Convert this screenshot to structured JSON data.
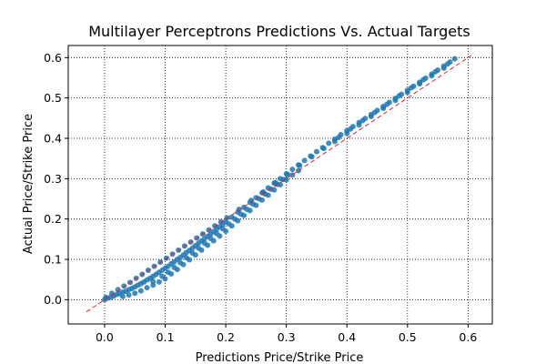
{
  "chart_data": {
    "type": "scatter",
    "title": "Multilayer Perceptrons Predictions Vs. Actual Targets",
    "xlabel": "Predictions Price/Strike Price",
    "ylabel": "Actual Price/Strike Price",
    "xlim": [
      -0.06,
      0.64
    ],
    "ylim": [
      -0.06,
      0.63
    ],
    "xticks": [
      0.0,
      0.1,
      0.2,
      0.3,
      0.4,
      0.5,
      0.6
    ],
    "yticks": [
      0.0,
      0.1,
      0.2,
      0.3,
      0.4,
      0.5,
      0.6
    ],
    "xtick_labels": [
      "0.0",
      "0.1",
      "0.2",
      "0.3",
      "0.4",
      "0.5",
      "0.6"
    ],
    "ytick_labels": [
      "0.0",
      "0.1",
      "0.2",
      "0.3",
      "0.4",
      "0.5",
      "0.6"
    ],
    "grid": true,
    "grid_style": "dotted",
    "point_color": "#1f77b4",
    "reference_line": {
      "x": [
        -0.03,
        0.605
      ],
      "y": [
        -0.03,
        0.605
      ],
      "color": "#d62728",
      "style": "dashed"
    },
    "series": [
      {
        "points": [
          [
            0.0,
            0.0
          ],
          [
            0.005,
            0.004
          ],
          [
            0.01,
            0.006
          ],
          [
            0.015,
            0.009
          ],
          [
            0.02,
            0.013
          ],
          [
            0.025,
            0.015
          ],
          [
            0.03,
            0.019
          ],
          [
            0.035,
            0.021
          ],
          [
            0.04,
            0.025
          ],
          [
            0.045,
            0.028
          ],
          [
            0.05,
            0.032
          ],
          [
            0.055,
            0.036
          ],
          [
            0.06,
            0.04
          ],
          [
            0.065,
            0.044
          ],
          [
            0.07,
            0.049
          ],
          [
            0.075,
            0.053
          ],
          [
            0.08,
            0.058
          ],
          [
            0.085,
            0.063
          ],
          [
            0.09,
            0.068
          ],
          [
            0.095,
            0.073
          ],
          [
            0.1,
            0.078
          ],
          [
            0.105,
            0.083
          ],
          [
            0.11,
            0.089
          ],
          [
            0.115,
            0.094
          ],
          [
            0.12,
            0.1
          ],
          [
            0.125,
            0.105
          ],
          [
            0.13,
            0.111
          ],
          [
            0.135,
            0.117
          ],
          [
            0.14,
            0.122
          ],
          [
            0.145,
            0.128
          ],
          [
            0.15,
            0.134
          ],
          [
            0.155,
            0.14
          ],
          [
            0.16,
            0.146
          ],
          [
            0.165,
            0.151
          ],
          [
            0.17,
            0.157
          ],
          [
            0.175,
            0.163
          ],
          [
            0.18,
            0.169
          ],
          [
            0.185,
            0.175
          ],
          [
            0.19,
            0.181
          ],
          [
            0.195,
            0.187
          ],
          [
            0.2,
            0.193
          ],
          [
            0.21,
            0.205
          ],
          [
            0.22,
            0.217
          ],
          [
            0.23,
            0.229
          ],
          [
            0.24,
            0.241
          ],
          [
            0.25,
            0.253
          ],
          [
            0.26,
            0.265
          ],
          [
            0.27,
            0.277
          ],
          [
            0.28,
            0.289
          ],
          [
            0.29,
            0.3
          ],
          [
            0.3,
            0.312
          ],
          [
            0.31,
            0.323
          ],
          [
            0.32,
            0.334
          ],
          [
            0.33,
            0.345
          ],
          [
            0.34,
            0.356
          ],
          [
            0.35,
            0.367
          ],
          [
            0.36,
            0.377
          ],
          [
            0.37,
            0.388
          ],
          [
            0.38,
            0.398
          ],
          [
            0.39,
            0.409
          ],
          [
            0.4,
            0.419
          ],
          [
            0.41,
            0.429
          ],
          [
            0.42,
            0.439
          ],
          [
            0.43,
            0.449
          ],
          [
            0.44,
            0.459
          ],
          [
            0.45,
            0.469
          ],
          [
            0.46,
            0.479
          ],
          [
            0.47,
            0.489
          ],
          [
            0.48,
            0.499
          ],
          [
            0.49,
            0.509
          ],
          [
            0.5,
            0.519
          ],
          [
            0.51,
            0.529
          ],
          [
            0.52,
            0.539
          ],
          [
            0.53,
            0.549
          ],
          [
            0.54,
            0.559
          ],
          [
            0.55,
            0.569
          ],
          [
            0.56,
            0.579
          ],
          [
            0.57,
            0.589
          ],
          [
            0.578,
            0.597
          ],
          [
            0.002,
            0.006
          ],
          [
            0.012,
            0.016
          ],
          [
            0.022,
            0.025
          ],
          [
            0.032,
            0.034
          ],
          [
            0.042,
            0.043
          ],
          [
            0.052,
            0.053
          ],
          [
            0.062,
            0.063
          ],
          [
            0.072,
            0.073
          ],
          [
            0.082,
            0.083
          ],
          [
            0.092,
            0.093
          ],
          [
            0.102,
            0.103
          ],
          [
            0.112,
            0.113
          ],
          [
            0.122,
            0.123
          ],
          [
            0.132,
            0.133
          ],
          [
            0.142,
            0.143
          ],
          [
            0.152,
            0.153
          ],
          [
            0.162,
            0.163
          ],
          [
            0.172,
            0.173
          ],
          [
            0.182,
            0.183
          ],
          [
            0.192,
            0.193
          ],
          [
            0.202,
            0.203
          ],
          [
            0.222,
            0.224
          ],
          [
            0.242,
            0.246
          ],
          [
            0.262,
            0.267
          ],
          [
            0.282,
            0.29
          ],
          [
            0.302,
            0.311
          ],
          [
            0.322,
            0.333
          ],
          [
            0.342,
            0.354
          ],
          [
            0.362,
            0.375
          ],
          [
            0.03,
            0.008
          ],
          [
            0.04,
            0.012
          ],
          [
            0.05,
            0.016
          ],
          [
            0.06,
            0.022
          ],
          [
            0.07,
            0.03
          ],
          [
            0.08,
            0.036
          ],
          [
            0.09,
            0.044
          ],
          [
            0.1,
            0.052
          ],
          [
            0.11,
            0.064
          ],
          [
            0.12,
            0.075
          ],
          [
            0.13,
            0.087
          ],
          [
            0.14,
            0.099
          ],
          [
            0.15,
            0.111
          ],
          [
            0.16,
            0.123
          ],
          [
            0.17,
            0.135
          ],
          [
            0.18,
            0.146
          ],
          [
            0.19,
            0.158
          ],
          [
            0.2,
            0.17
          ],
          [
            0.21,
            0.183
          ],
          [
            0.22,
            0.196
          ],
          [
            0.23,
            0.209
          ],
          [
            0.24,
            0.221
          ],
          [
            0.25,
            0.234
          ],
          [
            0.26,
            0.247
          ],
          [
            0.27,
            0.259
          ],
          [
            0.28,
            0.272
          ],
          [
            0.29,
            0.285
          ],
          [
            0.3,
            0.297
          ],
          [
            0.31,
            0.309
          ],
          [
            0.32,
            0.32
          ],
          [
            0.08,
            0.045
          ],
          [
            0.095,
            0.058
          ],
          [
            0.105,
            0.068
          ],
          [
            0.115,
            0.08
          ],
          [
            0.125,
            0.092
          ],
          [
            0.135,
            0.104
          ],
          [
            0.145,
            0.116
          ],
          [
            0.155,
            0.128
          ],
          [
            0.165,
            0.14
          ],
          [
            0.175,
            0.152
          ],
          [
            0.185,
            0.164
          ],
          [
            0.195,
            0.176
          ],
          [
            0.205,
            0.188
          ],
          [
            0.215,
            0.2
          ],
          [
            0.225,
            0.212
          ],
          [
            0.235,
            0.224
          ],
          [
            0.245,
            0.237
          ],
          [
            0.255,
            0.25
          ],
          [
            0.265,
            0.262
          ],
          [
            0.275,
            0.274
          ],
          [
            0.285,
            0.286
          ],
          [
            0.295,
            0.298
          ],
          [
            0.38,
            0.392
          ],
          [
            0.4,
            0.412
          ],
          [
            0.42,
            0.433
          ],
          [
            0.44,
            0.454
          ],
          [
            0.46,
            0.474
          ],
          [
            0.48,
            0.494
          ],
          [
            0.5,
            0.514
          ],
          [
            0.52,
            0.535
          ],
          [
            0.54,
            0.555
          ],
          [
            0.56,
            0.574
          ],
          [
            0.386,
            0.402
          ],
          [
            0.406,
            0.423
          ],
          [
            0.426,
            0.444
          ],
          [
            0.446,
            0.464
          ],
          [
            0.466,
            0.484
          ],
          [
            0.486,
            0.505
          ],
          [
            0.506,
            0.525
          ],
          [
            0.526,
            0.545
          ],
          [
            0.546,
            0.565
          ],
          [
            0.566,
            0.584
          ]
        ]
      }
    ]
  }
}
